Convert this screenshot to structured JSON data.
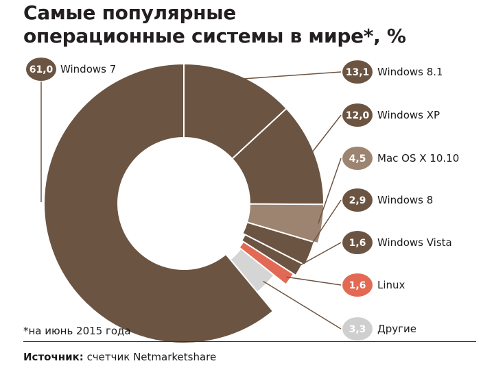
{
  "title_line1": "Самые популярные",
  "title_line2": "операционные системы в мире*, %",
  "footnote": "*на июнь 2015 года",
  "source": {
    "label": "Источник:",
    "text": " счетчик Netmarketshare"
  },
  "colors": {
    "main": "#6b5442",
    "light": "#9c8470",
    "linux": "#e26a55",
    "other": "#d5d5d5",
    "label_text": "#ffffff",
    "leader": "#6b5442"
  },
  "chart_data": {
    "type": "pie",
    "subtype": "donut",
    "title": "Самые популярные операционные системы в мире*, %",
    "unit": "%",
    "slices": [
      {
        "name": "Windows 7",
        "value": 61.0,
        "label": "61,0",
        "color": "#6b5442"
      },
      {
        "name": "Windows 8.1",
        "value": 13.1,
        "label": "13,1",
        "color": "#6b5442"
      },
      {
        "name": "Windows XP",
        "value": 12.0,
        "label": "12,0",
        "color": "#6b5442"
      },
      {
        "name": "Mac OS X 10.10",
        "value": 4.5,
        "label": "4,5",
        "color": "#9c8470"
      },
      {
        "name": "Windows 8",
        "value": 2.9,
        "label": "2,9",
        "color": "#6b5442"
      },
      {
        "name": "Windows Vista",
        "value": 1.6,
        "label": "1,6",
        "color": "#6b5442"
      },
      {
        "name": "Linux",
        "value": 1.6,
        "label": "1,6",
        "color": "#e26a55"
      },
      {
        "name": "Другие",
        "value": 3.3,
        "label": "3,3",
        "color": "#d5d5d5"
      }
    ],
    "note": "*на июнь 2015 года"
  }
}
